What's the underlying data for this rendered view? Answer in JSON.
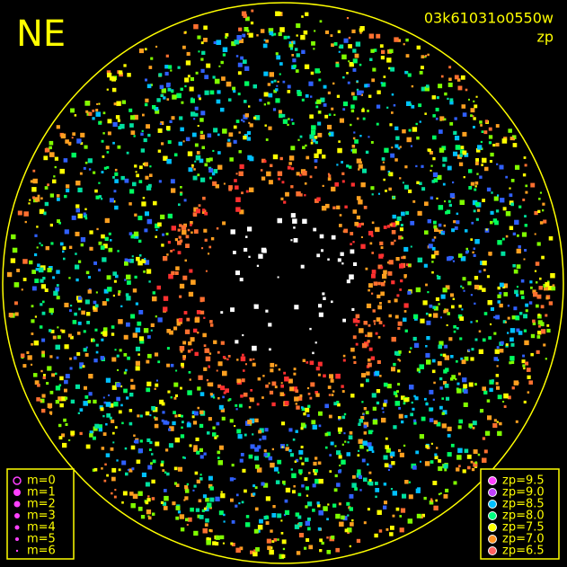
{
  "header": {
    "corner_label": "NE",
    "image_id": "03k61031o0550w",
    "mode": "zp"
  },
  "legend_magnitude": {
    "items": [
      "m=0",
      "m=1",
      "m=2",
      "m=3",
      "m=4",
      "m=5",
      "m=6"
    ]
  },
  "legend_zeropoint": {
    "items": [
      "zp=9.5",
      "zp=9.0",
      "zp=8.5",
      "zp=8.0",
      "zp=7.5",
      "zp=7.0",
      "zp=6.5"
    ]
  }
}
